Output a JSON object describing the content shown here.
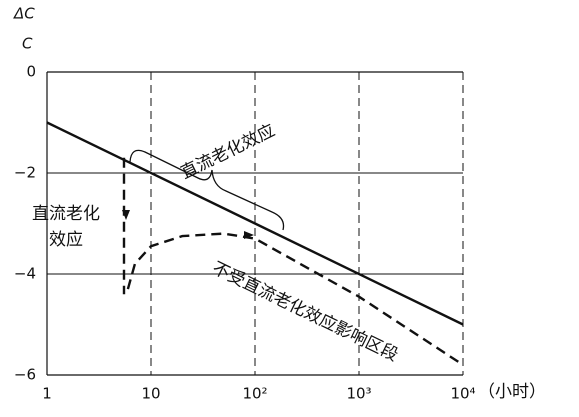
{
  "chart_data": {
    "type": "line",
    "y_label_top": "ΔC",
    "y_label_bottom": "C",
    "x_unit": "（小时）",
    "log_x": true,
    "xlim": [
      1,
      10000
    ],
    "xticks": [
      1,
      10,
      {
        "value": 100,
        "label": "10²"
      },
      {
        "value": 1000,
        "label": "10³"
      },
      {
        "value": 10000,
        "label": "10⁴"
      }
    ],
    "ylim": [
      -6,
      0
    ],
    "yticks": [
      0,
      {
        "value": -2,
        "label": "−2"
      },
      {
        "value": -4,
        "label": "−4"
      },
      {
        "value": -6,
        "label": "−6"
      }
    ],
    "grid": true,
    "series": [
      {
        "style": "solid",
        "color": "#111111",
        "x": [
          1,
          10000
        ],
        "values": [
          -1,
          -5
        ]
      },
      {
        "style": "dashed",
        "color": "#111111",
        "x": [
          5.5,
          5.5
        ],
        "values": [
          -1.7,
          -4.4
        ]
      },
      {
        "style": "dashed",
        "color": "#111111",
        "x": [
          6,
          7,
          10,
          20,
          50,
          100,
          1000,
          10000
        ],
        "values": [
          -4.3,
          -3.8,
          -3.45,
          -3.25,
          -3.2,
          -3.3,
          -4.45,
          -5.8
        ]
      }
    ],
    "annotations": {
      "bracket_label": "直流老化效应",
      "left_label": [
        "直流老化",
        "效应"
      ],
      "dashed_label": "不受直流老化效应影响区段"
    }
  }
}
